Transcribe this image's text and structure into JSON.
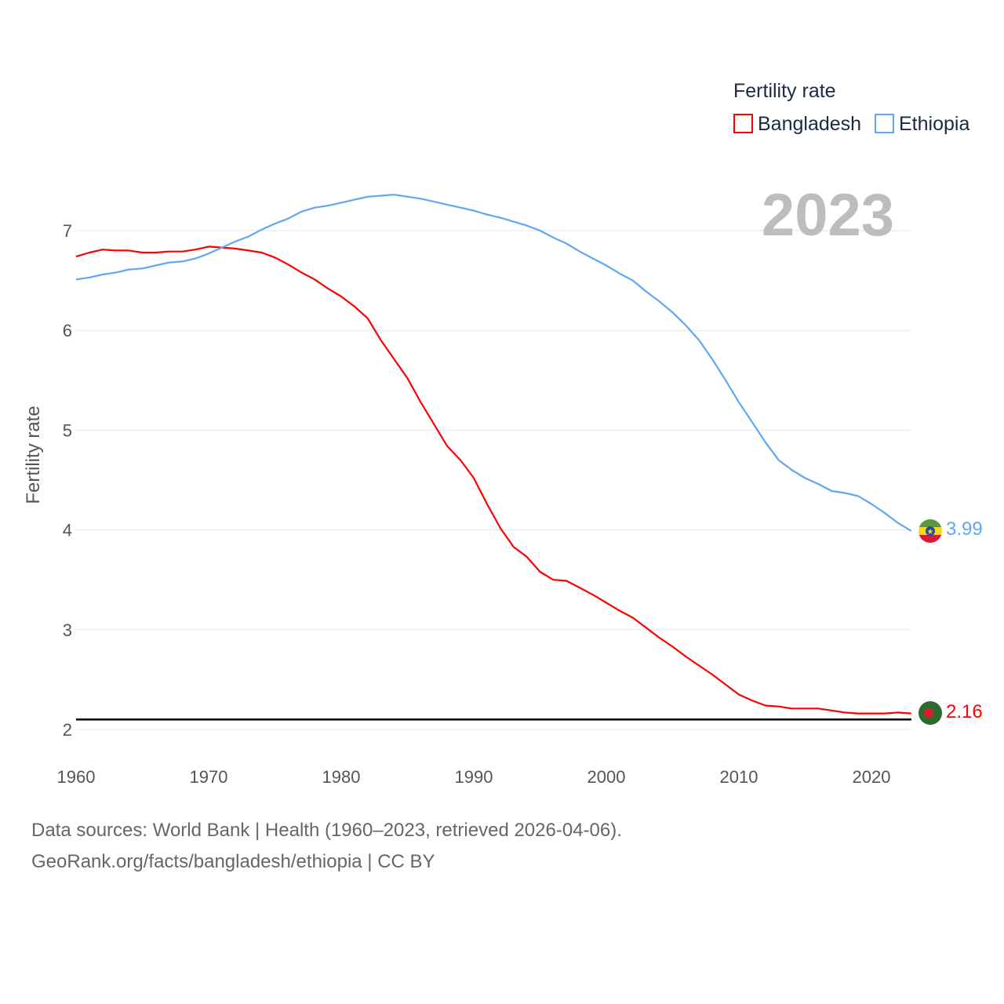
{
  "chart_data": {
    "type": "line",
    "ylabel": "Fertility rate",
    "xlabel": "",
    "legend_title": "Fertility rate",
    "legend_position": "top-right",
    "year_label": "2023",
    "xlim": [
      1960,
      2023
    ],
    "ylim": [
      2,
      7.5
    ],
    "x_ticks": [
      1960,
      1970,
      1980,
      1990,
      2000,
      2010,
      2020
    ],
    "y_ticks": [
      2,
      3,
      4,
      5,
      6,
      7
    ],
    "grid": true,
    "reference_line": {
      "value": 2.1,
      "color": "#000000"
    },
    "x": [
      1960,
      1961,
      1962,
      1963,
      1964,
      1965,
      1966,
      1967,
      1968,
      1969,
      1970,
      1971,
      1972,
      1973,
      1974,
      1975,
      1976,
      1977,
      1978,
      1979,
      1980,
      1981,
      1982,
      1983,
      1984,
      1985,
      1986,
      1987,
      1988,
      1989,
      1990,
      1991,
      1992,
      1993,
      1994,
      1995,
      1996,
      1997,
      1998,
      1999,
      2000,
      2001,
      2002,
      2003,
      2004,
      2005,
      2006,
      2007,
      2008,
      2009,
      2010,
      2011,
      2012,
      2013,
      2014,
      2015,
      2016,
      2017,
      2018,
      2019,
      2020,
      2021,
      2022,
      2023
    ],
    "series": [
      {
        "name": "Bangladesh",
        "color": "#ff0000",
        "end_label": "2.16",
        "values": [
          6.74,
          6.78,
          6.81,
          6.8,
          6.8,
          6.78,
          6.78,
          6.79,
          6.79,
          6.81,
          6.84,
          6.83,
          6.82,
          6.8,
          6.78,
          6.73,
          6.66,
          6.58,
          6.51,
          6.42,
          6.34,
          6.24,
          6.12,
          5.9,
          5.71,
          5.52,
          5.28,
          5.06,
          4.84,
          4.7,
          4.52,
          4.26,
          4.02,
          3.83,
          3.73,
          3.58,
          3.5,
          3.49,
          3.42,
          3.35,
          3.27,
          3.19,
          3.12,
          3.02,
          2.92,
          2.83,
          2.73,
          2.64,
          2.55,
          2.45,
          2.35,
          2.29,
          2.24,
          2.23,
          2.21,
          2.21,
          2.21,
          2.19,
          2.17,
          2.16,
          2.16,
          2.16,
          2.17,
          2.16
        ]
      },
      {
        "name": "Ethiopia",
        "color": "#5ea8f2",
        "end_label": "3.99",
        "values": [
          6.51,
          6.53,
          6.56,
          6.58,
          6.61,
          6.62,
          6.65,
          6.68,
          6.69,
          6.72,
          6.77,
          6.83,
          6.89,
          6.94,
          7.01,
          7.07,
          7.12,
          7.19,
          7.23,
          7.25,
          7.28,
          7.31,
          7.34,
          7.35,
          7.36,
          7.34,
          7.32,
          7.29,
          7.26,
          7.23,
          7.2,
          7.16,
          7.13,
          7.09,
          7.05,
          7.0,
          6.93,
          6.87,
          6.79,
          6.72,
          6.65,
          6.57,
          6.5,
          6.39,
          6.29,
          6.18,
          6.05,
          5.9,
          5.71,
          5.5,
          5.28,
          5.08,
          4.88,
          4.7,
          4.6,
          4.52,
          4.46,
          4.39,
          4.37,
          4.34,
          4.26,
          4.17,
          4.07,
          3.99
        ]
      }
    ]
  },
  "footer": {
    "line1": "Data sources: World Bank | Health (1960–2023, retrieved 2026-04-06).",
    "line2": "GeoRank.org/facts/bangladesh/ethiopia | CC BY"
  }
}
